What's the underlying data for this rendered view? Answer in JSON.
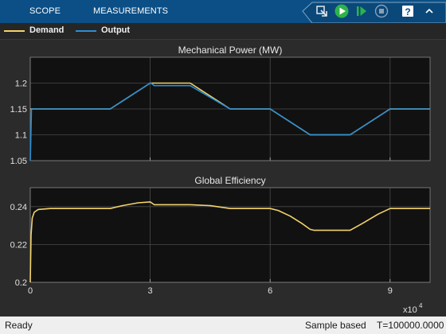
{
  "toolbar": {
    "tabs": [
      {
        "label": "SCOPE"
      },
      {
        "label": "MEASUREMENTS"
      }
    ],
    "buttons": [
      {
        "name": "highlight-simulink-block",
        "icon": "highlight-icon"
      },
      {
        "name": "run",
        "icon": "play-icon"
      },
      {
        "name": "step-forward",
        "icon": "step-forward-icon"
      },
      {
        "name": "stop",
        "icon": "stop-icon"
      },
      {
        "name": "help",
        "icon": "help-icon"
      },
      {
        "name": "collapse-toolstrip",
        "icon": "chevron-up-icon"
      }
    ],
    "colors": {
      "background": "#0b4f86"
    }
  },
  "legend": {
    "entries": [
      {
        "label": "Demand",
        "color": "#f2d36b"
      },
      {
        "label": "Output",
        "color": "#2b8fd6"
      }
    ]
  },
  "chart_data": [
    {
      "type": "line",
      "title": "Mechanical Power (MW)",
      "xlabel": "",
      "ylabel": "",
      "xlim": [
        0,
        100000
      ],
      "ylim": [
        1.05,
        1.25
      ],
      "yticks": [
        "1.05",
        "1.1",
        "1.15",
        "1.2"
      ],
      "grid": true,
      "series": [
        {
          "name": "Demand",
          "color": "#f2d36b",
          "x": [
            0,
            20000,
            30000,
            40000,
            50000,
            60000,
            70000,
            80000,
            90000,
            100000
          ],
          "y": [
            1.15,
            1.15,
            1.2,
            1.2,
            1.15,
            1.15,
            1.1,
            1.1,
            1.15,
            1.15
          ]
        },
        {
          "name": "Output",
          "color": "#2b8fd6",
          "x": [
            0,
            100,
            300,
            20000,
            30000,
            30200,
            31000,
            40000,
            50000,
            60000,
            70000,
            80000,
            90000,
            100000
          ],
          "y": [
            1.05,
            1.08,
            1.15,
            1.15,
            1.2,
            1.2,
            1.195,
            1.195,
            1.15,
            1.15,
            1.1,
            1.1,
            1.15,
            1.15
          ]
        }
      ]
    },
    {
      "type": "line",
      "title": "Global Efficiency",
      "xlabel": "",
      "ylabel": "",
      "xlim": [
        0,
        100000
      ],
      "ylim": [
        0.2,
        0.25
      ],
      "yticks": [
        "0.2",
        "0.22",
        "0.24"
      ],
      "xticks": [
        "0",
        "3",
        "6",
        "9"
      ],
      "xtick_values": [
        0,
        30000,
        60000,
        90000
      ],
      "x_multiplier": "x10",
      "x_exponent": "4",
      "grid": true,
      "series": [
        {
          "name": "Demand",
          "color": "#f2d36b",
          "x": [
            0,
            200,
            500,
            1000,
            2000,
            5000,
            20000,
            23000,
            27000,
            30000,
            31000,
            40000,
            45000,
            50000,
            60000,
            62000,
            65000,
            68000,
            70000,
            71000,
            80000,
            83000,
            87000,
            90000,
            100000
          ],
          "y": [
            0.2,
            0.225,
            0.234,
            0.237,
            0.2385,
            0.239,
            0.239,
            0.2405,
            0.242,
            0.2425,
            0.241,
            0.241,
            0.2405,
            0.239,
            0.239,
            0.238,
            0.235,
            0.231,
            0.228,
            0.2275,
            0.2275,
            0.231,
            0.236,
            0.239,
            0.239
          ]
        }
      ]
    }
  ],
  "status": {
    "left": "Ready",
    "mode": "Sample based",
    "time": "T=100000.0000"
  }
}
